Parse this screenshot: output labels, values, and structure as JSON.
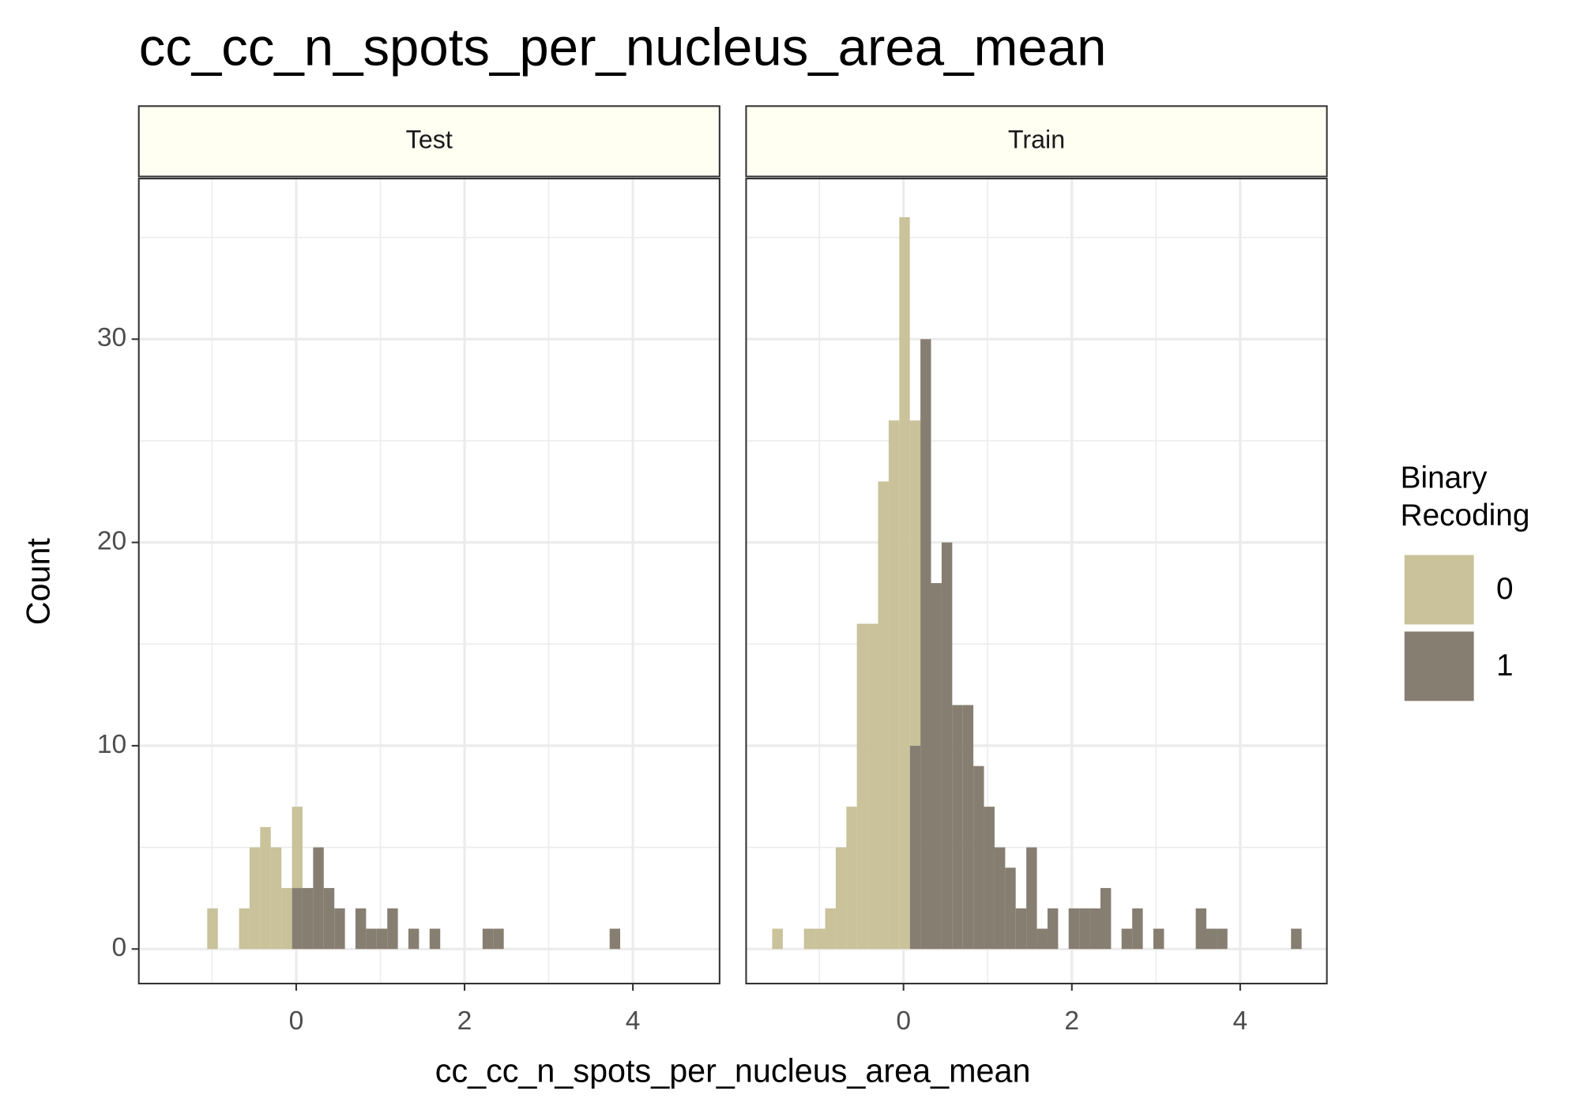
{
  "chart_data": {
    "type": "histogram",
    "title": "cc_cc_n_spots_per_nucleus_area_mean",
    "xlabel": "cc_cc_n_spots_per_nucleus_area_mean",
    "ylabel": "Count",
    "legend_title": "Binary\nRecoding",
    "legend_position": "right",
    "stacked": true,
    "grid": true,
    "panels": [
      "Test",
      "Train"
    ],
    "bins": [
      -1.56,
      -1.434,
      -1.308,
      -1.183,
      -1.057,
      -0.931,
      -0.805,
      -0.679,
      -0.554,
      -0.428,
      -0.302,
      -0.176,
      -0.05,
      0.075,
      0.201,
      0.327,
      0.453,
      0.579,
      0.704,
      0.83,
      0.956,
      1.082,
      1.208,
      1.333,
      1.459,
      1.585,
      1.711,
      1.837,
      1.962,
      2.088,
      2.214,
      2.34,
      2.466,
      2.591,
      2.717,
      2.843,
      2.969,
      3.095,
      3.22,
      3.346,
      3.472,
      3.598,
      3.724,
      3.849,
      3.975,
      4.101,
      4.227,
      4.353,
      4.478,
      4.604,
      4.73
    ],
    "xlim": [
      -1.87,
      5.03
    ],
    "xticks": [
      0,
      2,
      4
    ],
    "xminor": [
      -1,
      1,
      3
    ],
    "ylim": [
      -1.7,
      37.9
    ],
    "yticks": [
      0,
      10,
      20,
      30
    ],
    "yminor": [
      5,
      15,
      25,
      35
    ],
    "series": [
      {
        "name": "0",
        "color": "#c9c29a",
        "values": [
          [
            0,
            0,
            0,
            0,
            2,
            0,
            0,
            2,
            5,
            6,
            5,
            3,
            4,
            0,
            0,
            0,
            0,
            0,
            0,
            0,
            0,
            0,
            0,
            0,
            0,
            0,
            0,
            0,
            0,
            0,
            0,
            0,
            0,
            0,
            0,
            0,
            0,
            0,
            0,
            0,
            0,
            0,
            0,
            0,
            0,
            0,
            0,
            0,
            0,
            0
          ],
          [
            1,
            0,
            0,
            1,
            1,
            2,
            5,
            7,
            16,
            16,
            23,
            26,
            36,
            16,
            0,
            0,
            0,
            0,
            0,
            0,
            0,
            0,
            0,
            0,
            0,
            0,
            0,
            0,
            0,
            0,
            0,
            0,
            0,
            0,
            0,
            0,
            0,
            0,
            0,
            0,
            0,
            0,
            0,
            0,
            0,
            0,
            0,
            0,
            0,
            0
          ]
        ]
      },
      {
        "name": "1",
        "color": "#877e72",
        "values": [
          [
            0,
            0,
            0,
            0,
            0,
            0,
            0,
            0,
            0,
            0,
            0,
            0,
            3,
            3,
            5,
            3,
            2,
            0,
            2,
            1,
            1,
            2,
            0,
            1,
            0,
            1,
            0,
            0,
            0,
            0,
            1,
            1,
            0,
            0,
            0,
            0,
            0,
            0,
            0,
            0,
            0,
            0,
            1,
            0,
            0,
            0,
            0,
            0,
            0,
            0
          ],
          [
            0,
            0,
            0,
            0,
            0,
            0,
            0,
            0,
            0,
            0,
            0,
            0,
            0,
            10,
            30,
            18,
            20,
            12,
            12,
            9,
            7,
            5,
            4,
            2,
            5,
            1,
            2,
            0,
            2,
            2,
            2,
            3,
            0,
            1,
            2,
            0,
            1,
            0,
            0,
            0,
            2,
            1,
            1,
            0,
            0,
            0,
            0,
            0,
            0,
            1
          ]
        ]
      }
    ]
  }
}
